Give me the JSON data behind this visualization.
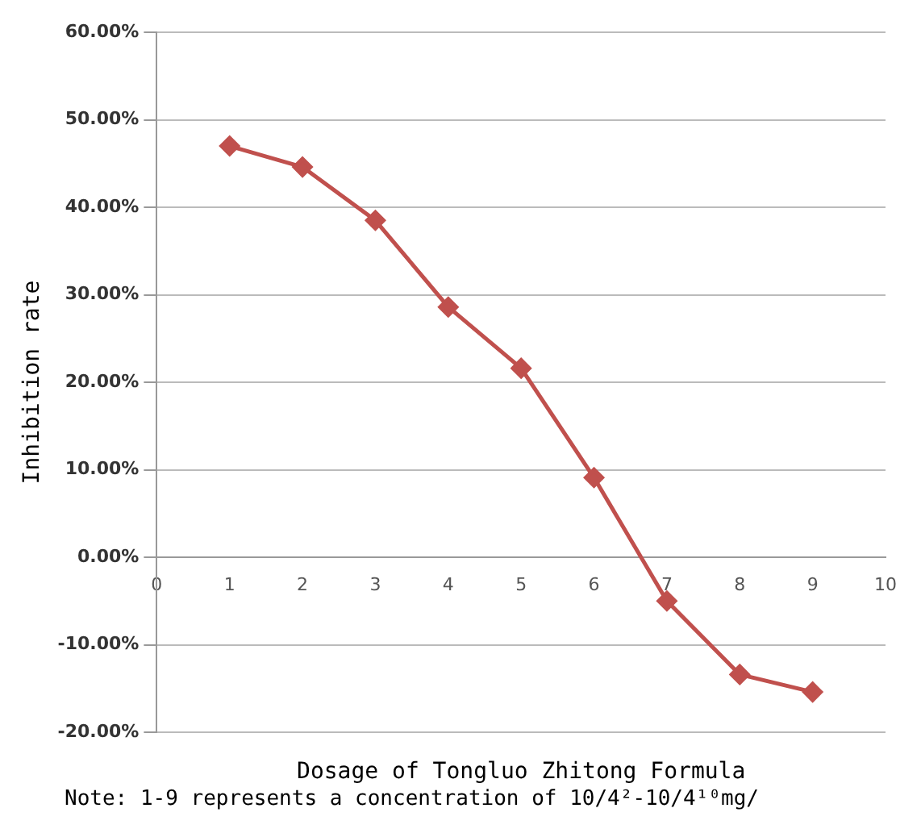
{
  "chart_data": {
    "type": "line",
    "xlabel": "Dosage of Tongluo Zhitong Formula",
    "ylabel": "Inhibition rate",
    "annotations": [
      "Note: 1-9 represents a concentration of 10/4²-10/4¹⁰mg/"
    ],
    "x": [
      1,
      2,
      3,
      4,
      5,
      6,
      7,
      8,
      9
    ],
    "series": [
      {
        "color": "#c0504d",
        "values": [
          47,
          44.6,
          38.5,
          28.6,
          21.6,
          9.1,
          -5,
          -13.4,
          -15.4
        ]
      }
    ],
    "xlim": [
      0,
      10
    ],
    "xticks": [
      0,
      1,
      2,
      3,
      4,
      5,
      6,
      7,
      8,
      9,
      10
    ],
    "ylim": [
      -20,
      60
    ],
    "yticks": [
      {
        "value": -20,
        "label": "-20.00%"
      },
      {
        "value": -10,
        "label": "-10.00%"
      },
      {
        "value": 0,
        "label": "0.00%"
      },
      {
        "value": 10,
        "label": "10.00%"
      },
      {
        "value": 20,
        "label": "20.00%"
      },
      {
        "value": 30,
        "label": "30.00%"
      },
      {
        "value": 40,
        "label": "40.00%"
      },
      {
        "value": 50,
        "label": "50.00%"
      },
      {
        "value": 60,
        "label": "60.00%"
      }
    ],
    "grid": "y",
    "legend": false,
    "marker": "diamond",
    "line_style": "solid"
  }
}
